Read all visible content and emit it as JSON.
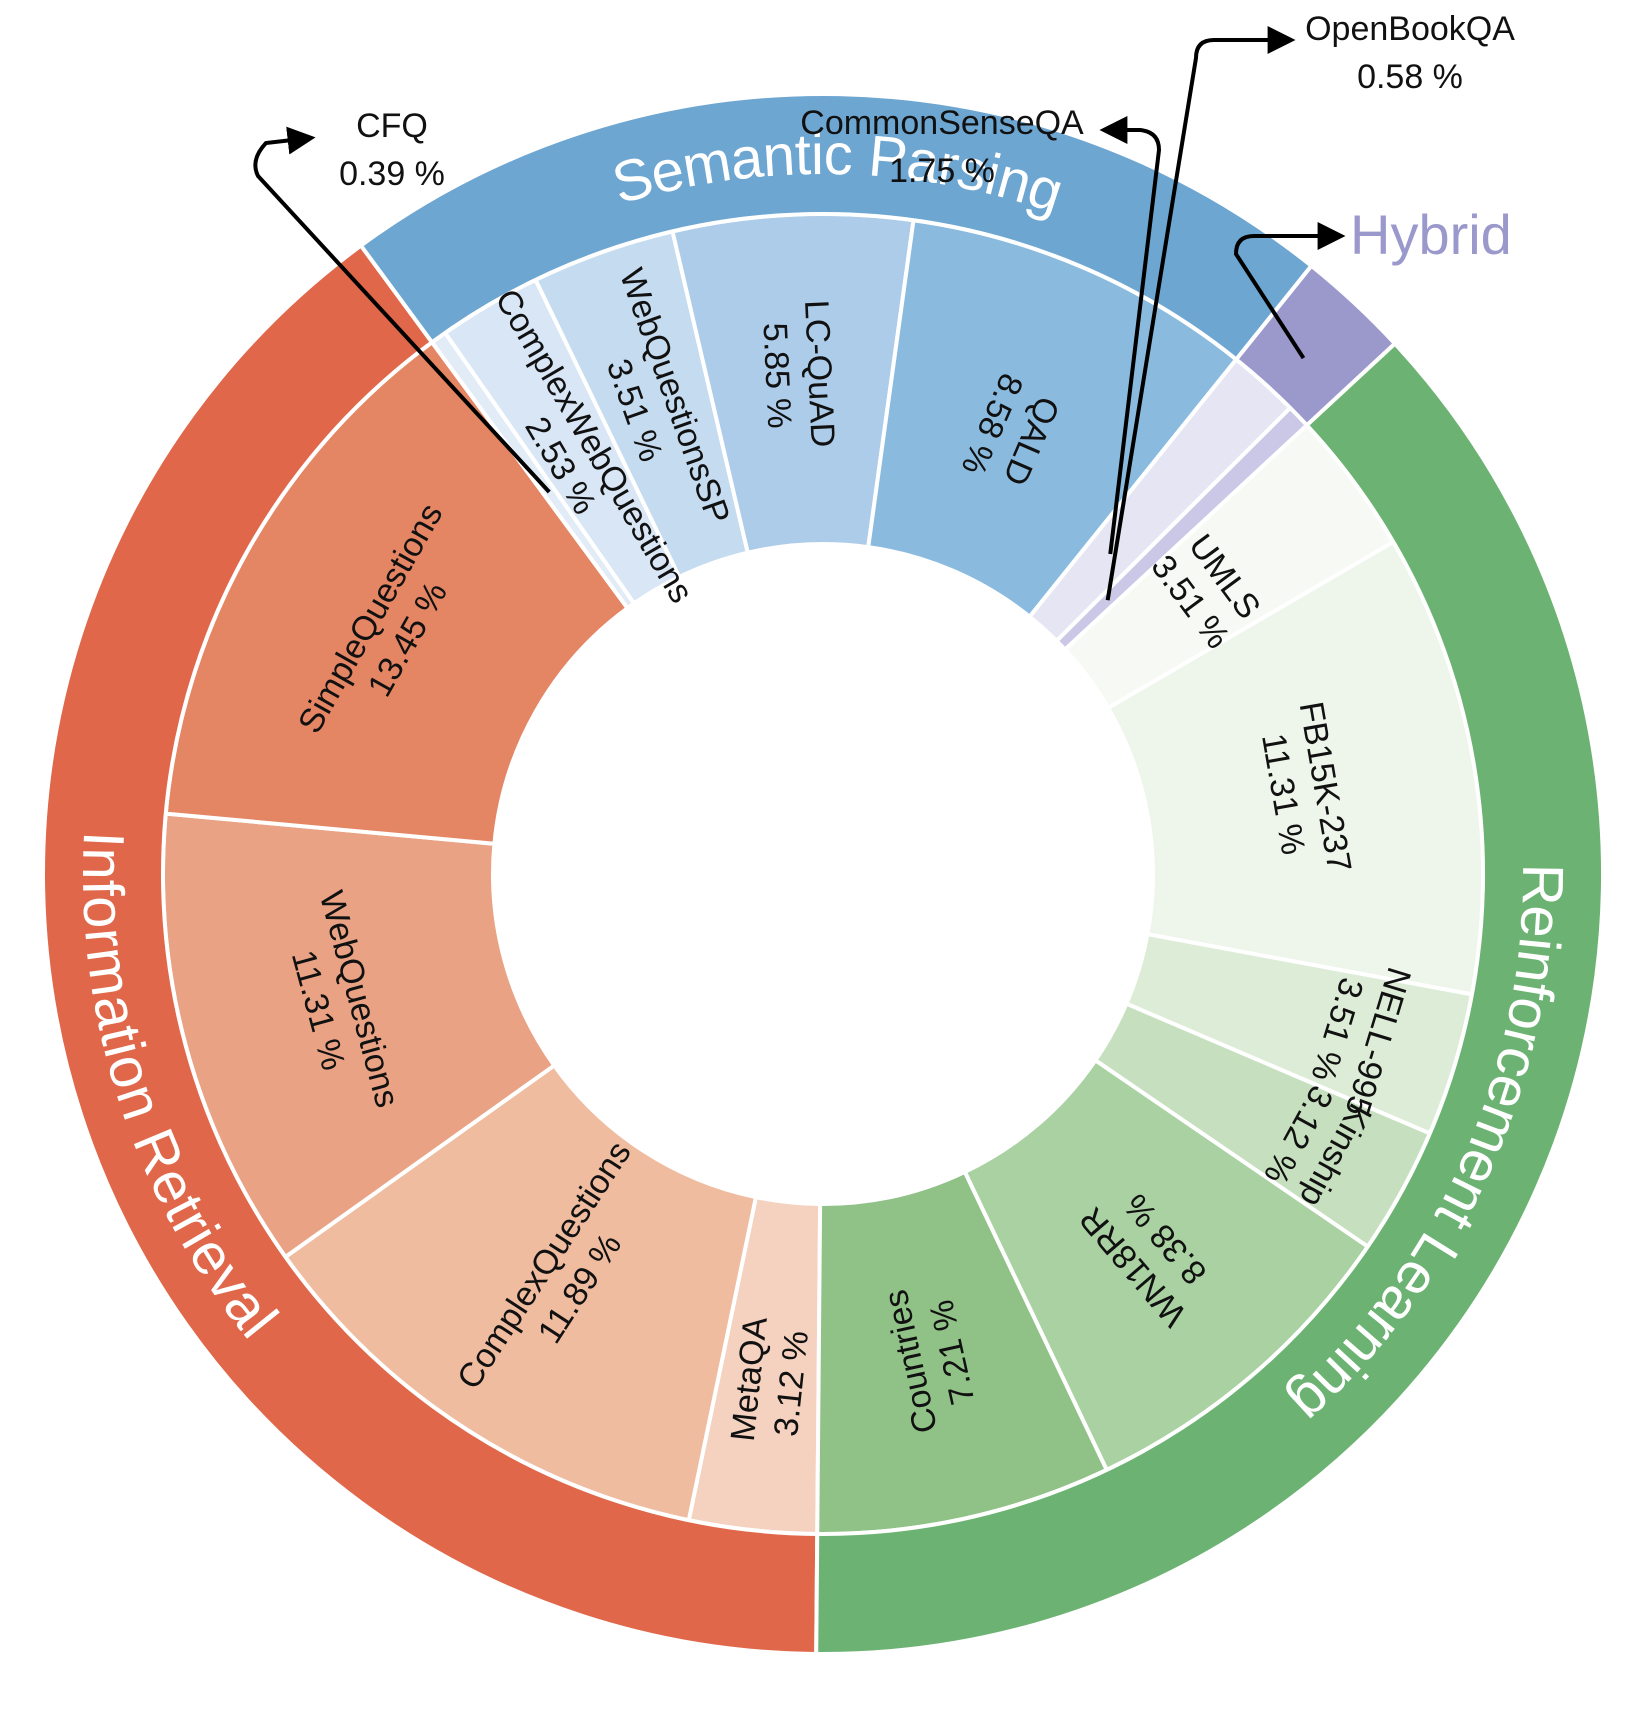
{
  "chart_data": {
    "type": "sunburst",
    "unit": "%",
    "categories": [
      {
        "name": "Information Retrieval",
        "color": "#e06749",
        "segments": [
          {
            "name": "MetaQA",
            "value": 3.12,
            "color": "#f5d1bf"
          },
          {
            "name": "ComplexQuestions",
            "value": 11.89,
            "color": "#efbca0"
          },
          {
            "name": "WebQuestions",
            "value": 11.31,
            "color": "#e9a283"
          },
          {
            "name": "SimpleQuestions",
            "value": 13.45,
            "color": "#e48563"
          }
        ]
      },
      {
        "name": "Semantic Parsing",
        "color": "#6ea6d2",
        "segments": [
          {
            "name": "CFQ",
            "value": 0.39,
            "color": "#e2ecf7"
          },
          {
            "name": "ComplexWebQuestions",
            "value": 2.53,
            "color": "#d8e6f5"
          },
          {
            "name": "WebQuestionsSP",
            "value": 3.51,
            "color": "#c5dbef"
          },
          {
            "name": "LC-QuAD",
            "value": 5.85,
            "color": "#acccea"
          },
          {
            "name": "QALD",
            "value": 8.58,
            "color": "#8abbdf"
          }
        ]
      },
      {
        "name": "Hybrid",
        "color": "#9b99cc",
        "segments": [
          {
            "name": "CommonSenseQA",
            "value": 1.75,
            "color": "#e6e5f3"
          },
          {
            "name": "OpenBookQA",
            "value": 0.58,
            "color": "#cac8e6"
          }
        ]
      },
      {
        "name": "Reinforcement Learning",
        "color": "#6cb373",
        "segments": [
          {
            "name": "UMLS",
            "value": 3.51,
            "color": "#f7faf4"
          },
          {
            "name": "FB15K-237",
            "value": 11.31,
            "color": "#eef5eb"
          },
          {
            "name": "NELL-995",
            "value": 3.51,
            "color": "#ddecd6"
          },
          {
            "name": "Kinship",
            "value": 3.12,
            "color": "#c6e0bf"
          },
          {
            "name": "WN18RR",
            "value": 8.38,
            "color": "#a9d1a2"
          },
          {
            "name": "Countries",
            "value": 7.21,
            "color": "#90c287"
          }
        ]
      }
    ]
  }
}
